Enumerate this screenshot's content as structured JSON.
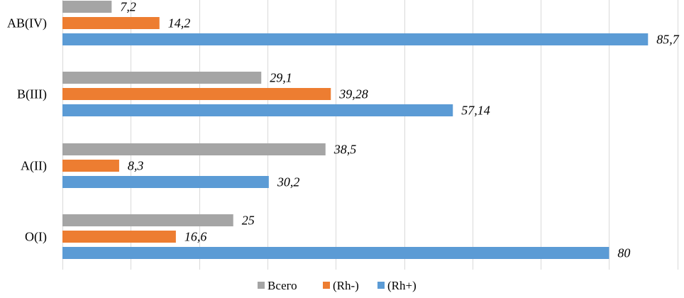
{
  "chart_data": {
    "type": "bar",
    "orientation": "horizontal",
    "categories": [
      "O(I)",
      "A(II)",
      "B(III)",
      "AB(IV)"
    ],
    "series": [
      {
        "name": "Всего",
        "color": "#a5a5a5",
        "values": [
          25,
          38.5,
          29.1,
          7.2
        ],
        "labels": [
          "25",
          "38,5",
          "29,1",
          "7,2"
        ]
      },
      {
        "name": "(Rh-)",
        "color": "#ed7d31",
        "values": [
          16.6,
          8.3,
          39.28,
          14.2
        ],
        "labels": [
          "16,6",
          "8,3",
          "39,28",
          "14,2"
        ]
      },
      {
        "name": "(Rh+)",
        "color": "#5b9bd5",
        "values": [
          80,
          30.2,
          57.14,
          85.7
        ],
        "labels": [
          "80",
          "30,2",
          "57,14",
          "85,7"
        ]
      }
    ],
    "xlim": [
      0,
      90
    ],
    "grid": true,
    "legend": "bottom"
  }
}
